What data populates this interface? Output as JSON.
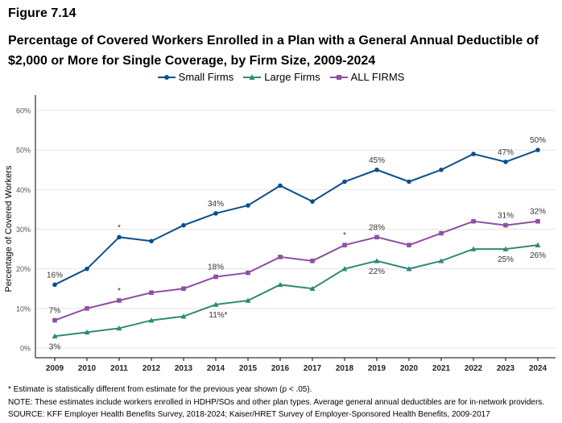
{
  "figure_label": "Figure 7.14",
  "chart_data": {
    "type": "line",
    "title": "Percentage of Covered Workers Enrolled in a Plan with a General Annual Deductible of $2,000 or More for Single Coverage, by Firm Size, 2009-2024",
    "xlabel": "",
    "ylabel": "Percentage of Covered Workers",
    "ylim": [
      0,
      60
    ],
    "yticks": [
      "0%",
      "10%",
      "20%",
      "30%",
      "40%",
      "50%",
      "60%"
    ],
    "x": [
      "2009",
      "2010",
      "2011",
      "2012",
      "2013",
      "2014",
      "2015",
      "2016",
      "2017",
      "2018",
      "2019",
      "2020",
      "2021",
      "2022",
      "2023",
      "2024"
    ],
    "grid": "horizontal",
    "legend_position": "top",
    "series": [
      {
        "name": "Small Firms",
        "color": "#0b4f8c",
        "marker": "circle",
        "values": [
          16,
          20,
          28,
          27,
          31,
          34,
          36,
          41,
          37,
          42,
          45,
          42,
          45,
          49,
          47,
          50
        ],
        "labels": {
          "2009": "16%",
          "2011": "*",
          "2014": "34%",
          "2019": "45%",
          "2023": "47%",
          "2024": "50%"
        },
        "label_side": "above"
      },
      {
        "name": "Large Firms",
        "color": "#2f8a78",
        "marker": "triangle",
        "values": [
          3,
          4,
          5,
          7,
          8,
          11,
          12,
          16,
          15,
          20,
          22,
          20,
          22,
          25,
          25,
          26
        ],
        "labels": {
          "2009": "3%",
          "2014": "11%*",
          "2019": "22%",
          "2023": "25%",
          "2024": "26%"
        },
        "label_side": "below"
      },
      {
        "name": "ALL FIRMS",
        "color": "#8f4fa3",
        "marker": "square",
        "values": [
          7,
          10,
          12,
          14,
          15,
          18,
          19,
          23,
          22,
          26,
          28,
          26,
          29,
          32,
          31,
          32
        ],
        "labels": {
          "2009": "7%",
          "2011": "*",
          "2014": "18%",
          "2018": "*",
          "2019": "28%",
          "2023": "31%",
          "2024": "32%"
        },
        "label_side": "above"
      }
    ]
  },
  "notes": {
    "asterisk": "* Estimate is statistically different from estimate for the previous year shown (p < .05).",
    "note": "NOTE: These estimates include workers enrolled in HDHP/SOs and other plan types. Average general annual deductibles are for in-network providers.",
    "source": "SOURCE: KFF Employer Health Benefits Survey, 2018-2024; Kaiser/HRET Survey of Employer-Sponsored Health Benefits, 2009-2017"
  }
}
